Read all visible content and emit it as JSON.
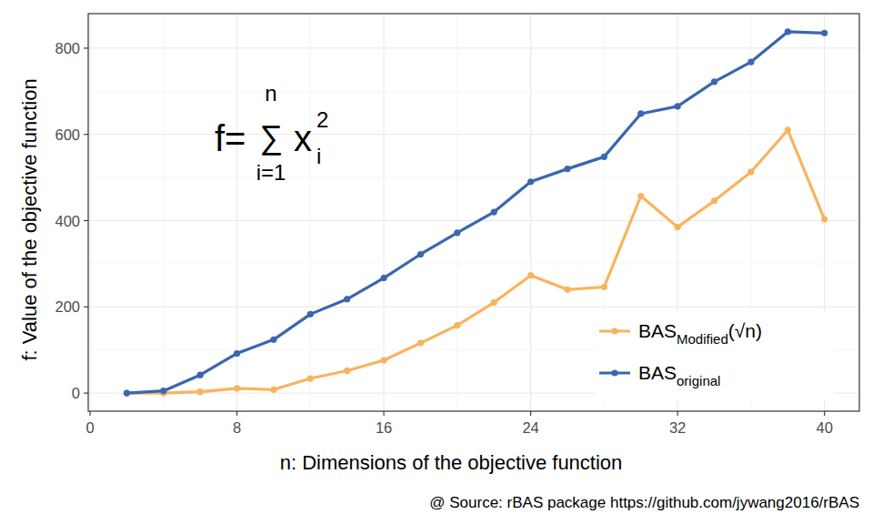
{
  "chart_data": {
    "type": "line",
    "x_label": "n: Dimensions of the objective function",
    "y_label": "f: Value of the objective function",
    "caption": "@ Source: rBAS package https://github.com/jywang2016/rBAS",
    "annotation": {
      "lhs": "f=",
      "symbol": "∑",
      "upper": "n",
      "lower": "i=1",
      "term": "x",
      "subscript": "i",
      "superscript": "2"
    },
    "x": [
      2,
      4,
      6,
      8,
      10,
      12,
      14,
      16,
      18,
      20,
      22,
      24,
      26,
      28,
      30,
      32,
      34,
      36,
      38,
      40
    ],
    "series": [
      {
        "name": "BASModified(√n)",
        "color": "#f9b35e",
        "marker": "circle",
        "line_style": "solid",
        "values": [
          0,
          0,
          3,
          11,
          8,
          34,
          52,
          76,
          116,
          157,
          210,
          273,
          240,
          246,
          457,
          385,
          446,
          513,
          610,
          403
        ]
      },
      {
        "name": "BASoriginal",
        "color": "#3a67ae",
        "marker": "circle",
        "line_style": "solid",
        "values": [
          0,
          5,
          42,
          92,
          124,
          183,
          218,
          267,
          322,
          372,
          420,
          490,
          520,
          548,
          648,
          665,
          722,
          768,
          838,
          835
        ]
      }
    ],
    "xlim": [
      -0.1,
      41.9
    ],
    "xticks": [
      0,
      8,
      16,
      24,
      32,
      40
    ],
    "ylim": [
      -42,
      880
    ],
    "yticks": [
      0,
      200,
      400,
      600,
      800
    ],
    "grid": true,
    "legend": "bottom-right"
  }
}
